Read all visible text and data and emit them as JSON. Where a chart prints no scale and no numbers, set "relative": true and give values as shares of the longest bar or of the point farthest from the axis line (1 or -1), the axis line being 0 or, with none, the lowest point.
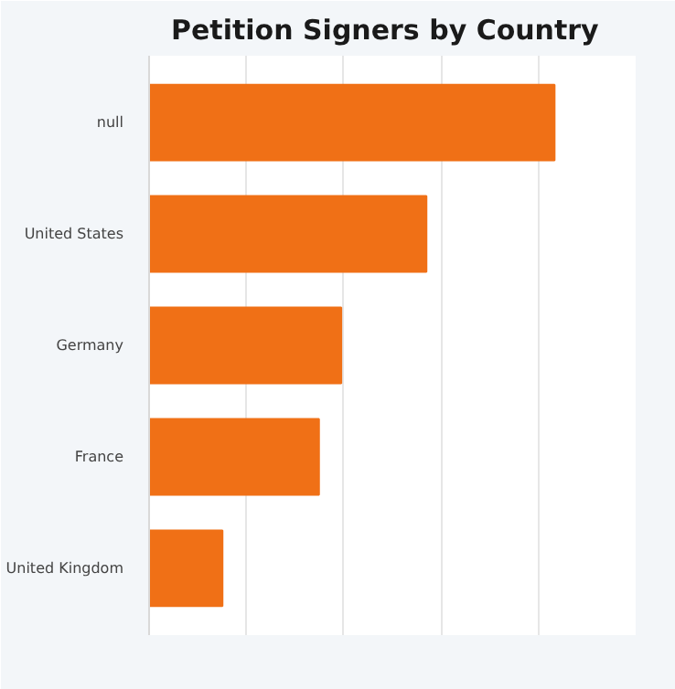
{
  "chart_data": {
    "type": "bar",
    "title": "Petition Signers by Country",
    "orientation": "horizontal",
    "relative": true,
    "grid": "x",
    "categories": [
      "null",
      "United States",
      "Germany",
      "France",
      "United Kingdom"
    ],
    "values": [
      1,
      0.684,
      0.474,
      0.419,
      0.181
    ],
    "color": "#f07016"
  }
}
